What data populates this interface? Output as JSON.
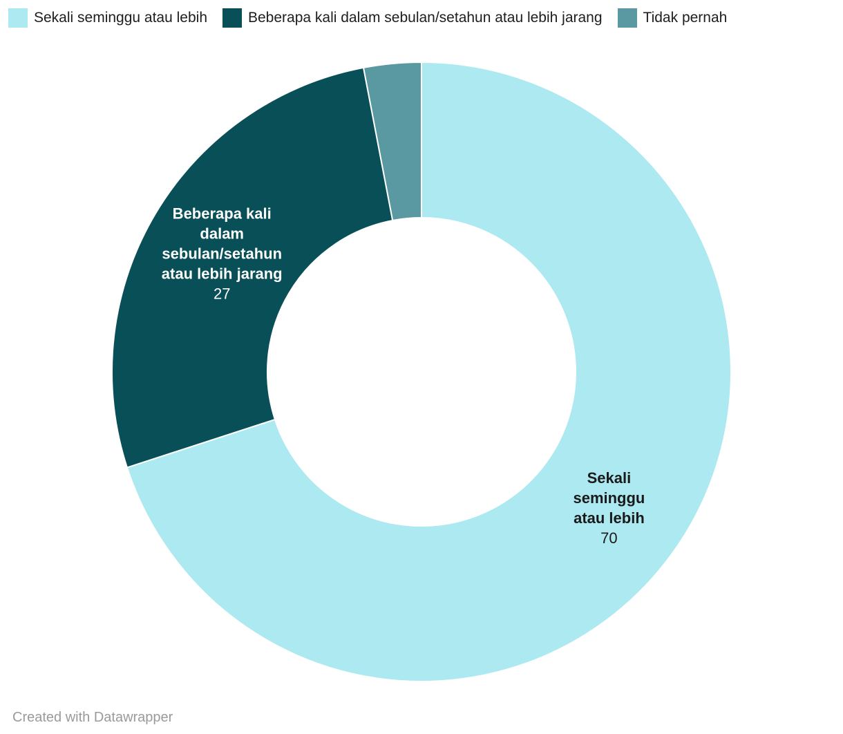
{
  "legend": {
    "items": [
      {
        "label": "Sekali seminggu atau lebih",
        "color": "#ace9f0"
      },
      {
        "label": "Beberapa kali dalam sebulan/setahun atau lebih jarang",
        "color": "#084f57"
      },
      {
        "label": "Tidak pernah",
        "color": "#5a99a1"
      }
    ]
  },
  "chart_data": {
    "type": "pie",
    "variant": "donut",
    "direction": "clockwise",
    "start_angle_deg": 0,
    "inner_radius_ratio": 0.5,
    "total": 100,
    "slices": [
      {
        "label": "Sekali seminggu atau lebih",
        "value": 70,
        "color": "#ace9f0",
        "show_label": true,
        "label_lines": [
          "Sekali",
          "seminggu",
          "atau lebih"
        ],
        "label_color": "#1a1a1a"
      },
      {
        "label": "Beberapa kali dalam sebulan/setahun atau lebih jarang",
        "value": 27,
        "color": "#084f57",
        "show_label": true,
        "label_lines": [
          "Beberapa kali",
          "dalam",
          "sebulan/setahun",
          "atau lebih jarang"
        ],
        "label_color": "#ffffff"
      },
      {
        "label": "Tidak pernah",
        "value": 3,
        "color": "#5a99a1",
        "show_label": false,
        "label_lines": [],
        "label_color": "#1a1a1a"
      }
    ]
  },
  "footer": {
    "credit": "Created with Datawrapper"
  }
}
